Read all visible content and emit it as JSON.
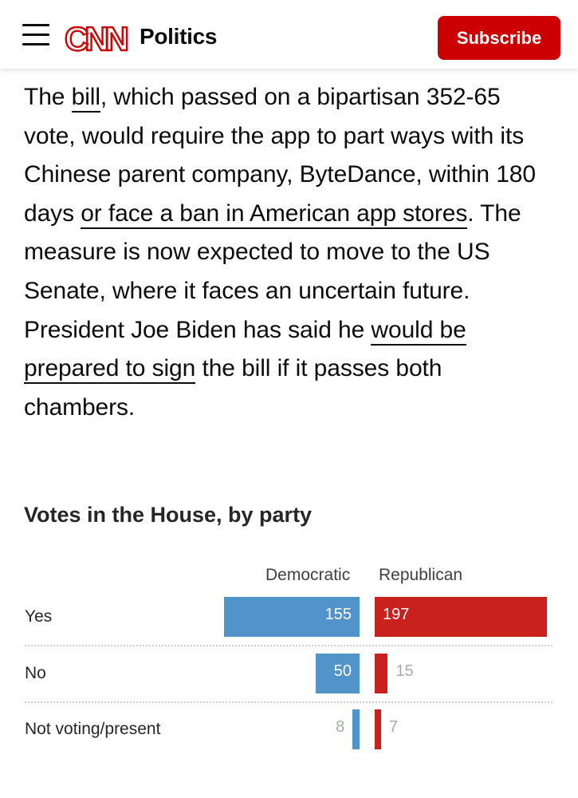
{
  "header": {
    "brand": "CNN",
    "section": "Politics",
    "subscribe_label": "Subscribe",
    "brand_color": "#cc0000"
  },
  "article": {
    "segments": [
      {
        "text": "The "
      },
      {
        "text": "bill",
        "link": true
      },
      {
        "text": ", which passed on a bipartisan 352-65 vote, would require the app to part ways with its Chinese parent company, ByteDance, within 180 days "
      },
      {
        "text": "or face a ban in American app stores",
        "link": true
      },
      {
        "text": ". The measure is now expected to move to the US Senate, where it faces an uncertain future. President Joe Biden has said he "
      },
      {
        "text": "would be prepared to sign",
        "link": true
      },
      {
        "text": " the bill if it passes both chambers."
      }
    ]
  },
  "chart_data": {
    "type": "bar",
    "title": "Votes in the House, by party",
    "categories": [
      "Yes",
      "No",
      "Not voting/present"
    ],
    "series": [
      {
        "name": "Democratic",
        "values": [
          155,
          50,
          8
        ],
        "color": "#5294c9"
      },
      {
        "name": "Republican",
        "values": [
          197,
          15,
          7
        ],
        "color": "#c9211e"
      }
    ],
    "xlim": [
      0,
      197
    ],
    "legend": "top"
  }
}
